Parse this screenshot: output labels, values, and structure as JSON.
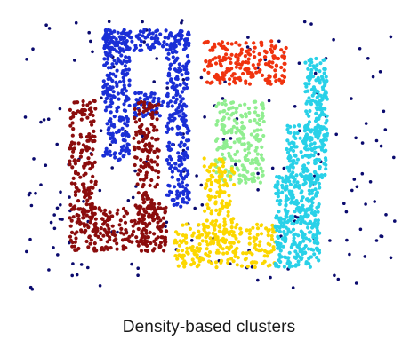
{
  "chart_data": {
    "type": "scatter",
    "title": "Density-based clusters",
    "xlabel": "",
    "ylabel": "",
    "grid": false,
    "legend": "none",
    "xlim": [
      0,
      100
    ],
    "ylim": [
      0,
      100
    ],
    "clusters": [
      {
        "id": "noise",
        "color": "#0a0a6e",
        "count": 190,
        "regions": [
          [
            0,
            100,
            0,
            100
          ]
        ]
      },
      {
        "id": "blue",
        "color": "#1a2fd6",
        "count": 640,
        "regions": [
          [
            21,
            44,
            87,
            95
          ],
          [
            21,
            28,
            47,
            95
          ],
          [
            38,
            44,
            30,
            95
          ],
          [
            29,
            37,
            63,
            72
          ]
        ]
      },
      {
        "id": "dark-red",
        "color": "#8b0d0d",
        "count": 560,
        "regions": [
          [
            12,
            19,
            24,
            69
          ],
          [
            29,
            36,
            24,
            69
          ],
          [
            12,
            38,
            14,
            30
          ]
        ]
      },
      {
        "id": "orange-red",
        "color": "#f0330f",
        "count": 190,
        "regions": [
          [
            48,
            70,
            75,
            91
          ]
        ]
      },
      {
        "id": "light-green",
        "color": "#90ee90",
        "count": 210,
        "regions": [
          [
            51,
            64,
            39,
            69
          ]
        ]
      },
      {
        "id": "yellow",
        "color": "#fcd700",
        "count": 330,
        "regions": [
          [
            48,
            56,
            17,
            48
          ],
          [
            40,
            67,
            8,
            24
          ]
        ]
      },
      {
        "id": "cyan",
        "color": "#29d1e8",
        "count": 640,
        "regions": [
          [
            75,
            81,
            55,
            85
          ],
          [
            70,
            81,
            40,
            60
          ],
          [
            67,
            79,
            8,
            42
          ]
        ]
      }
    ]
  }
}
